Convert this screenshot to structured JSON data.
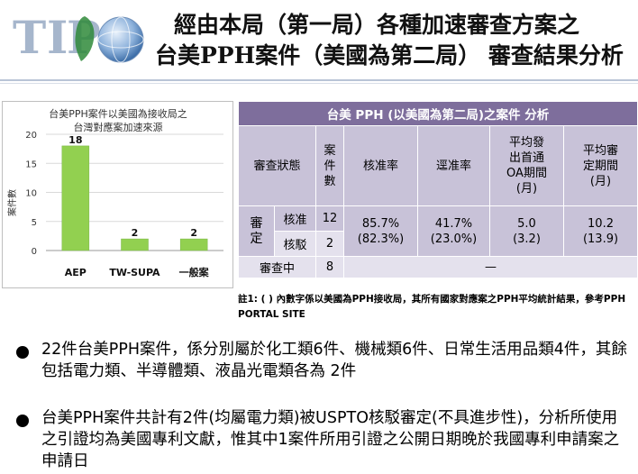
{
  "header": {
    "logo_letters": [
      "T",
      "I",
      "P",
      "O"
    ],
    "title_line1": "經由本局（第一局）各種加速審查方案之",
    "title_line2": "台美PPH案件（美國為第二局）  審查結果分析"
  },
  "chart_data": {
    "type": "bar",
    "title_lines": [
      "台美PPH案件以美國為接收局之",
      "台灣對應案加速來源"
    ],
    "categories": [
      "AEP",
      "TW-SUPA",
      "一般案"
    ],
    "values": [
      18,
      2,
      2
    ],
    "ylabel": "案件數",
    "ylim": [
      0,
      20
    ],
    "yticks": [
      0,
      5,
      10,
      15,
      20
    ],
    "bar_color": "#92d050",
    "grid": true
  },
  "table": {
    "title": "台美 PPH  (以美國為第二局)之案件 分析",
    "headers": {
      "status": "審查狀態",
      "count": [
        "案",
        "件",
        "數"
      ],
      "approve_rate": "核准率",
      "reject_rate": "逕准率",
      "avg_first_oa": [
        "平均發",
        "出首通",
        "OA期間",
        "(月)"
      ],
      "avg_period": [
        "平均審",
        "定期間",
        "(月)"
      ]
    },
    "group_label": [
      "審",
      "定"
    ],
    "rows": [
      {
        "label": "核准",
        "count": "12"
      },
      {
        "label": "核駁",
        "count": "2"
      }
    ],
    "merged": {
      "approve_rate": [
        "85.7%",
        "(82.3%)"
      ],
      "reject_rate": [
        "41.7%",
        "(23.0%)"
      ],
      "avg_first_oa": [
        "5.0",
        "(3.2)"
      ],
      "avg_period": [
        "10.2",
        "(13.9)"
      ]
    },
    "pending": {
      "label": "審查中",
      "count": "8",
      "rest": "—"
    }
  },
  "note": "註1: ( ) 內數字係以美國為PPH接收局，其所有國家對應案之PPH平均統計結果，參考PPH PORTAL SITE",
  "bullets": [
    "22件台美PPH案件，係分別屬於化工類6件、機械類6件、日常生活用品類4件，其餘包括電力類、半導體類、液晶光電類各為 2件",
    "台美PPH案件共計有2件(均屬電力類)被USPTO核駁審定(不具進步性)，分析所使用之引證均為美國專利文獻，惟其中1案件所用引證之公開日期晚於我國專利申請案之申請日"
  ]
}
